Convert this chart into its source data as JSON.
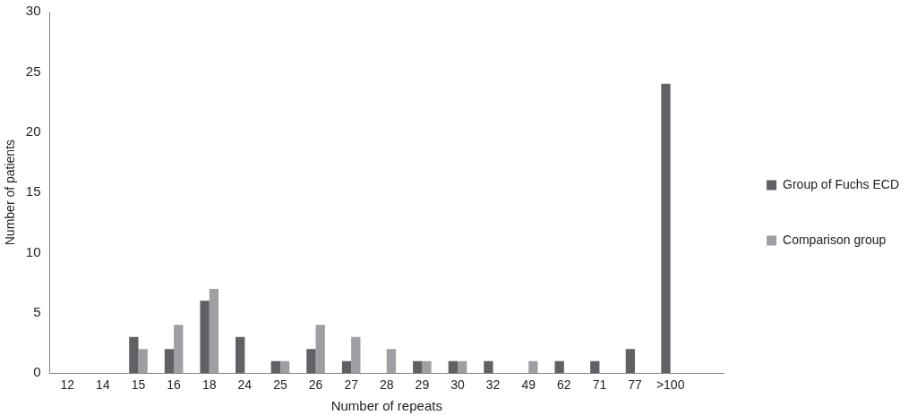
{
  "chart_data": {
    "type": "bar",
    "xlabel": "Number of repeats",
    "ylabel": "Number of patients",
    "categories": [
      "12",
      "14",
      "15",
      "16",
      "18",
      "24",
      "25",
      "26",
      "27",
      "28",
      "29",
      "30",
      "32",
      "49",
      "62",
      "71",
      "77",
      ">100",
      null
    ],
    "series": [
      {
        "name": "Group of Fuchs ECD",
        "color": "#5f6164",
        "values": [
          0,
          0,
          3,
          2,
          6,
          3,
          1,
          2,
          1,
          0,
          1,
          1,
          1,
          0,
          1,
          1,
          2,
          24,
          null
        ]
      },
      {
        "name": "Comparison group",
        "color": "#9d9fa2",
        "values": [
          0,
          0,
          2,
          4,
          7,
          0,
          1,
          4,
          3,
          2,
          1,
          1,
          0,
          1,
          0,
          0,
          0,
          0,
          null
        ]
      }
    ],
    "ylim": [
      0,
      30
    ],
    "yticks": [
      0,
      5,
      10,
      15,
      20,
      25,
      30
    ],
    "grid": false,
    "legend": "right"
  }
}
